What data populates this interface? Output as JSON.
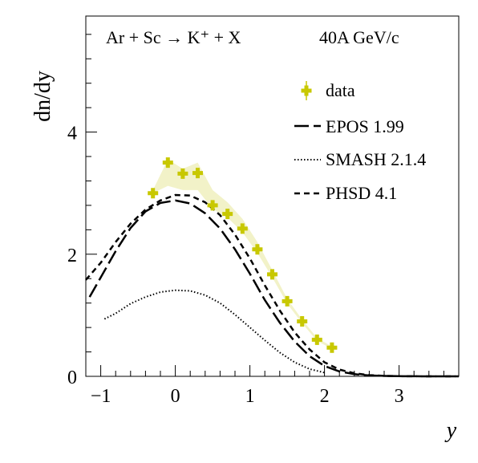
{
  "chart_data": {
    "type": "line",
    "title": {
      "left": "Ar + Sc → K⁺ + X",
      "right": "40A GeV/c"
    },
    "xlabel": "y",
    "ylabel": "dn/dy",
    "xlim": [
      -1.2,
      3.8
    ],
    "ylim": [
      0,
      5.9
    ],
    "x_ticks": [
      -1,
      0,
      1,
      2,
      3
    ],
    "y_ticks": [
      0,
      2,
      4
    ],
    "x_tick_labels": [
      "−1",
      "0",
      "1",
      "2",
      "3"
    ],
    "y_tick_labels": [
      "0",
      "2",
      "4"
    ],
    "grid": false,
    "legend_position": "top-right",
    "legend": {
      "data": "data",
      "epos": "EPOS 1.99",
      "smash": "SMASH 2.1.4",
      "phsd": "PHSD 4.1"
    },
    "series": [
      {
        "name": "data",
        "style": "markers",
        "color": "#c8c800",
        "band_color": "#f2f2c8",
        "x": [
          -0.3,
          -0.1,
          0.1,
          0.3,
          0.5,
          0.7,
          0.9,
          1.1,
          1.3,
          1.5,
          1.7,
          1.9,
          2.1
        ],
        "y": [
          3.0,
          3.5,
          3.32,
          3.33,
          2.8,
          2.66,
          2.42,
          2.08,
          1.67,
          1.23,
          0.9,
          0.6,
          0.47
        ],
        "band_low": [
          3.0,
          3.12,
          3.05,
          3.05,
          2.74,
          2.6,
          2.36,
          2.02,
          1.62,
          1.19,
          0.87,
          0.58,
          0.45
        ],
        "band_high": [
          3.05,
          3.55,
          3.4,
          3.5,
          3.05,
          2.85,
          2.58,
          2.2,
          1.74,
          1.27,
          0.93,
          0.63,
          0.49
        ]
      },
      {
        "name": "EPOS 1.99",
        "style": "long-dash",
        "color": "#000000",
        "x": [
          -1.15,
          -1.0,
          -0.8,
          -0.6,
          -0.4,
          -0.2,
          0.0,
          0.2,
          0.4,
          0.6,
          0.8,
          1.0,
          1.2,
          1.4,
          1.6,
          1.8,
          2.0,
          2.2,
          2.4,
          2.6,
          2.8,
          3.0,
          3.4,
          3.8
        ],
        "y": [
          1.3,
          1.62,
          2.05,
          2.43,
          2.7,
          2.84,
          2.88,
          2.83,
          2.67,
          2.42,
          2.08,
          1.68,
          1.25,
          0.88,
          0.57,
          0.33,
          0.17,
          0.08,
          0.035,
          0.015,
          0.006,
          0.002,
          0.0,
          0.0
        ]
      },
      {
        "name": "SMASH 2.1.4",
        "style": "dotted",
        "color": "#000000",
        "x": [
          -0.95,
          -0.8,
          -0.6,
          -0.4,
          -0.2,
          0.0,
          0.2,
          0.4,
          0.6,
          0.8,
          1.0,
          1.2,
          1.4,
          1.6,
          1.8,
          2.0
        ],
        "y": [
          0.94,
          1.03,
          1.19,
          1.3,
          1.38,
          1.41,
          1.4,
          1.33,
          1.2,
          1.01,
          0.8,
          0.59,
          0.39,
          0.23,
          0.12,
          0.06
        ]
      },
      {
        "name": "PHSD 4.1",
        "style": "short-dash",
        "color": "#000000",
        "x": [
          -1.2,
          -1.0,
          -0.8,
          -0.6,
          -0.4,
          -0.2,
          0.0,
          0.2,
          0.4,
          0.6,
          0.8,
          1.0,
          1.2,
          1.4,
          1.6,
          1.8,
          2.0,
          2.2,
          2.4,
          2.6,
          2.8,
          3.0,
          3.4,
          3.8
        ],
        "y": [
          1.58,
          1.86,
          2.2,
          2.5,
          2.73,
          2.88,
          2.97,
          2.96,
          2.85,
          2.64,
          2.32,
          1.93,
          1.49,
          1.08,
          0.72,
          0.44,
          0.23,
          0.11,
          0.05,
          0.02,
          0.008,
          0.003,
          0.0,
          0.0
        ]
      }
    ]
  }
}
